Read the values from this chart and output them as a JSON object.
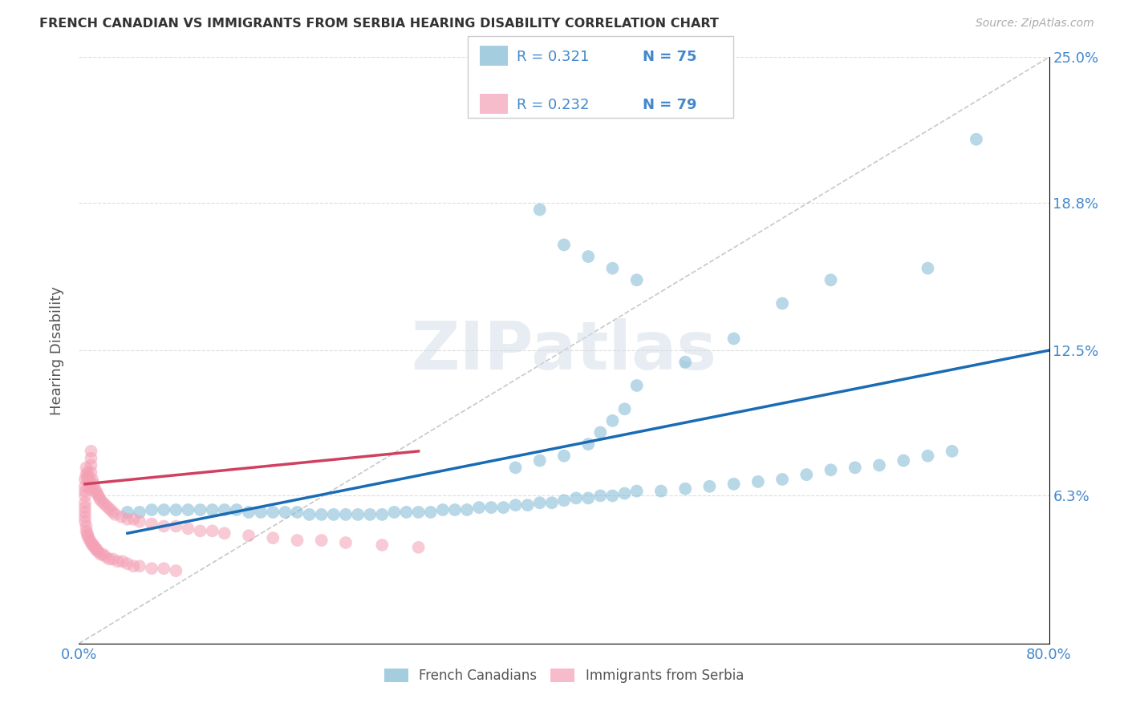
{
  "title": "FRENCH CANADIAN VS IMMIGRANTS FROM SERBIA HEARING DISABILITY CORRELATION CHART",
  "source": "Source: ZipAtlas.com",
  "ylabel": "Hearing Disability",
  "xlim": [
    0.0,
    0.8
  ],
  "ylim": [
    0.0,
    0.25
  ],
  "x_tick_labels": [
    "0.0%",
    "80.0%"
  ],
  "x_tick_values": [
    0.0,
    0.8
  ],
  "y_tick_labels": [
    "6.3%",
    "12.5%",
    "18.8%",
    "25.0%"
  ],
  "y_tick_values": [
    0.063,
    0.125,
    0.188,
    0.25
  ],
  "watermark": "ZIPatlas",
  "legend_r1": "R = 0.321",
  "legend_n1": "N = 75",
  "legend_r2": "R = 0.232",
  "legend_n2": "N = 79",
  "blue_color": "#7eb8d4",
  "pink_color": "#f4a0b5",
  "trend_blue": "#1a6bb5",
  "trend_pink": "#d04060",
  "diagonal_color": "#c8c8c8",
  "background": "#ffffff",
  "blue_scatter_x": [
    0.04,
    0.05,
    0.06,
    0.07,
    0.08,
    0.09,
    0.1,
    0.11,
    0.12,
    0.13,
    0.14,
    0.15,
    0.16,
    0.17,
    0.18,
    0.19,
    0.2,
    0.21,
    0.22,
    0.23,
    0.24,
    0.25,
    0.26,
    0.27,
    0.28,
    0.29,
    0.3,
    0.31,
    0.32,
    0.33,
    0.34,
    0.35,
    0.36,
    0.37,
    0.38,
    0.39,
    0.4,
    0.41,
    0.42,
    0.43,
    0.44,
    0.45,
    0.46,
    0.48,
    0.5,
    0.52,
    0.54,
    0.56,
    0.58,
    0.6,
    0.62,
    0.64,
    0.66,
    0.68,
    0.7,
    0.72,
    0.36,
    0.38,
    0.4,
    0.42,
    0.43,
    0.44,
    0.45,
    0.46,
    0.5,
    0.54,
    0.58,
    0.62,
    0.7,
    0.74,
    0.38,
    0.4,
    0.42,
    0.44,
    0.46
  ],
  "blue_scatter_y": [
    0.056,
    0.056,
    0.057,
    0.057,
    0.057,
    0.057,
    0.057,
    0.057,
    0.057,
    0.057,
    0.056,
    0.056,
    0.056,
    0.056,
    0.056,
    0.055,
    0.055,
    0.055,
    0.055,
    0.055,
    0.055,
    0.055,
    0.056,
    0.056,
    0.056,
    0.056,
    0.057,
    0.057,
    0.057,
    0.058,
    0.058,
    0.058,
    0.059,
    0.059,
    0.06,
    0.06,
    0.061,
    0.062,
    0.062,
    0.063,
    0.063,
    0.064,
    0.065,
    0.065,
    0.066,
    0.067,
    0.068,
    0.069,
    0.07,
    0.072,
    0.074,
    0.075,
    0.076,
    0.078,
    0.08,
    0.082,
    0.075,
    0.078,
    0.08,
    0.085,
    0.09,
    0.095,
    0.1,
    0.11,
    0.12,
    0.13,
    0.145,
    0.155,
    0.16,
    0.215,
    0.185,
    0.17,
    0.165,
    0.16,
    0.155
  ],
  "pink_scatter_x": [
    0.005,
    0.005,
    0.005,
    0.005,
    0.005,
    0.005,
    0.006,
    0.006,
    0.007,
    0.007,
    0.008,
    0.008,
    0.009,
    0.009,
    0.01,
    0.01,
    0.01,
    0.01,
    0.011,
    0.012,
    0.013,
    0.014,
    0.015,
    0.016,
    0.017,
    0.018,
    0.02,
    0.022,
    0.024,
    0.026,
    0.028,
    0.03,
    0.035,
    0.04,
    0.045,
    0.05,
    0.06,
    0.07,
    0.08,
    0.09,
    0.1,
    0.11,
    0.12,
    0.14,
    0.16,
    0.18,
    0.2,
    0.22,
    0.25,
    0.28,
    0.005,
    0.005,
    0.005,
    0.006,
    0.006,
    0.007,
    0.007,
    0.008,
    0.009,
    0.01,
    0.011,
    0.012,
    0.013,
    0.014,
    0.015,
    0.016,
    0.018,
    0.02,
    0.022,
    0.025,
    0.028,
    0.032,
    0.036,
    0.04,
    0.045,
    0.05,
    0.06,
    0.07,
    0.08
  ],
  "pink_scatter_y": [
    0.07,
    0.067,
    0.065,
    0.063,
    0.06,
    0.058,
    0.075,
    0.072,
    0.073,
    0.07,
    0.071,
    0.068,
    0.069,
    0.066,
    0.082,
    0.079,
    0.076,
    0.073,
    0.07,
    0.068,
    0.066,
    0.065,
    0.064,
    0.063,
    0.062,
    0.061,
    0.06,
    0.059,
    0.058,
    0.057,
    0.056,
    0.055,
    0.054,
    0.053,
    0.053,
    0.052,
    0.051,
    0.05,
    0.05,
    0.049,
    0.048,
    0.048,
    0.047,
    0.046,
    0.045,
    0.044,
    0.044,
    0.043,
    0.042,
    0.041,
    0.056,
    0.054,
    0.052,
    0.05,
    0.048,
    0.047,
    0.046,
    0.045,
    0.044,
    0.043,
    0.042,
    0.042,
    0.041,
    0.04,
    0.04,
    0.039,
    0.038,
    0.038,
    0.037,
    0.036,
    0.036,
    0.035,
    0.035,
    0.034,
    0.033,
    0.033,
    0.032,
    0.032,
    0.031
  ],
  "blue_trend_x": [
    0.04,
    0.8
  ],
  "blue_trend_y": [
    0.047,
    0.125
  ],
  "pink_trend_x": [
    0.005,
    0.28
  ],
  "pink_trend_y": [
    0.068,
    0.082
  ]
}
